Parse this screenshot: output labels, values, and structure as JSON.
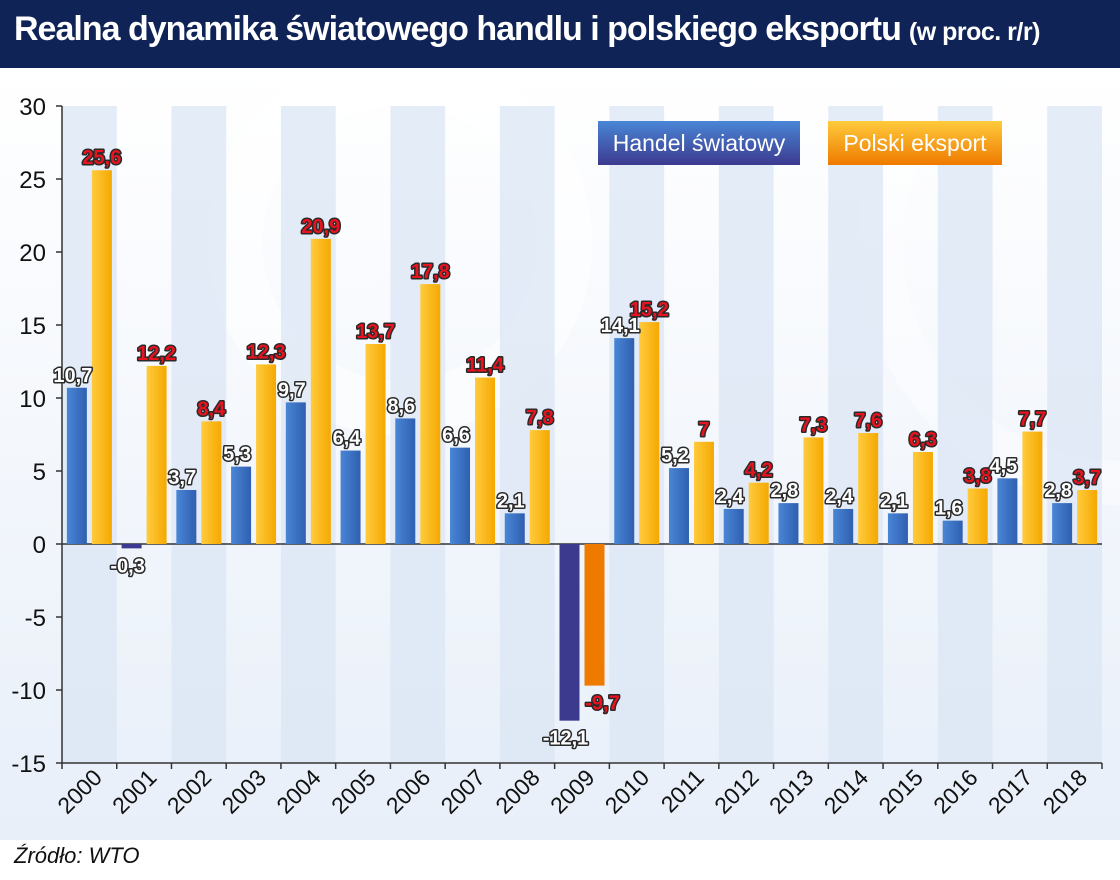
{
  "header": {
    "title": "Realna dynamika światowego handlu i polskiego eksportu",
    "subtitle": "(w proc. r/r)"
  },
  "source": "Źródło: WTO",
  "colors": {
    "header_bg": "#0f2357",
    "series_world": "#2f5fb0",
    "series_world_light": "#4a86d6",
    "series_poland": "#f5a800",
    "series_poland_light": "#ffcb3d",
    "world_negative": "#3c3a8f",
    "poland_negative": "#ee7a00",
    "label_world": "#ffffff",
    "label_poland": "#e8131f",
    "stripe": "#dbe5f4"
  },
  "chart_data": {
    "type": "bar",
    "categories": [
      "2000",
      "2001",
      "2002",
      "2003",
      "2004",
      "2005",
      "2006",
      "2007",
      "2008",
      "2009",
      "2010",
      "2011",
      "2012",
      "2013",
      "2014",
      "2015",
      "2016",
      "2017",
      "2018"
    ],
    "series": [
      {
        "name": "Handel światowy",
        "values": [
          10.7,
          -0.3,
          3.7,
          5.3,
          9.7,
          6.4,
          8.6,
          6.6,
          2.1,
          -12.1,
          14.1,
          5.2,
          2.4,
          2.8,
          2.4,
          2.1,
          1.6,
          4.5,
          2.8
        ],
        "labels": [
          "10,7",
          "-0,3",
          "3,7",
          "5,3",
          "9,7",
          "6,4",
          "8,6",
          "6,6",
          "2,1",
          "-12,1",
          "14,1",
          "5,2",
          "2,4",
          "2,8",
          "2,4",
          "2,1",
          "1,6",
          "4,5",
          "2,8"
        ]
      },
      {
        "name": "Polski eksport",
        "values": [
          25.6,
          12.2,
          8.4,
          12.3,
          20.9,
          13.7,
          17.8,
          11.4,
          7.8,
          -9.7,
          15.2,
          7,
          4.2,
          7.3,
          7.6,
          6.3,
          3.8,
          7.7,
          3.7
        ],
        "labels": [
          "25,6",
          "12,2",
          "8,4",
          "12,3",
          "20,9",
          "13,7",
          "17,8",
          "11,4",
          "7,8",
          "-9,7",
          "15,2",
          "7",
          "4,2",
          "7,3",
          "7,6",
          "6,3",
          "3,8",
          "7,7",
          "3,7"
        ]
      }
    ],
    "yticks": [
      "30",
      "25",
      "20",
      "15",
      "10",
      "5",
      "0",
      "-5",
      "-10",
      "-15"
    ],
    "ylim": [
      -15,
      30
    ],
    "legend_position": "top-right",
    "grid": false
  }
}
